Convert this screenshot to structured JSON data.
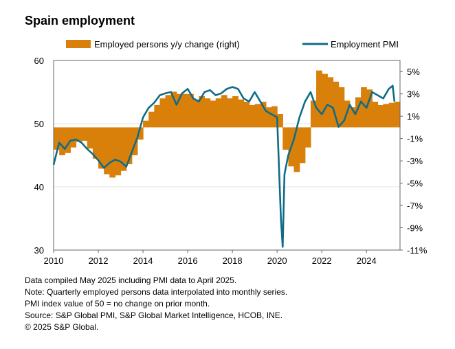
{
  "title": "Spain employment",
  "colors": {
    "bar": "#d9800a",
    "line": "#106b87",
    "grid": "#e6e6e6",
    "axis": "#666666"
  },
  "notes": [
    "Data compiled May 2025 including PMI data to April 2025.",
    "Note: Quarterly employed persons data interpolated into monthly series.",
    "PMI index value of 50 = no change on prior month.",
    "Source: S&P Global PMI, S&P Global Market Intelligence, HCOB, INE.",
    "© 2025 S&P Global."
  ],
  "chart_data": {
    "type": "line",
    "legend_position": "top",
    "grid": true,
    "x_label": "",
    "x_range": [
      2010.0,
      2025.5
    ],
    "x_ticks": [
      "2010",
      "2012",
      "2014",
      "2016",
      "2018",
      "2020",
      "2022",
      "2024"
    ],
    "y_left_range": [
      30,
      60
    ],
    "y_left_ticks": [
      "60",
      "50",
      "40",
      "30"
    ],
    "y_right_range": [
      -11,
      6
    ],
    "y_right_ticks": [
      "5%",
      "3%",
      "1%",
      "-1%",
      "-3%",
      "-5%",
      "-7%",
      "-9%",
      "-11%"
    ],
    "series": [
      {
        "name": "Employed persons y/y change (right)",
        "type": "bar",
        "axis": "right",
        "x": [
          2010.0,
          2010.25,
          2010.5,
          2010.75,
          2011.0,
          2011.25,
          2011.5,
          2011.75,
          2012.0,
          2012.25,
          2012.5,
          2012.75,
          2013.0,
          2013.25,
          2013.5,
          2013.75,
          2014.0,
          2014.25,
          2014.5,
          2014.75,
          2015.0,
          2015.25,
          2015.5,
          2015.75,
          2016.0,
          2016.25,
          2016.5,
          2016.75,
          2017.0,
          2017.25,
          2017.5,
          2017.75,
          2018.0,
          2018.25,
          2018.5,
          2018.75,
          2019.0,
          2019.25,
          2019.5,
          2019.75,
          2020.0,
          2020.25,
          2020.5,
          2020.75,
          2021.0,
          2021.25,
          2021.5,
          2021.75,
          2022.0,
          2022.25,
          2022.5,
          2022.75,
          2023.0,
          2023.25,
          2023.5,
          2023.75,
          2024.0,
          2024.25,
          2024.5,
          2024.75,
          2025.0,
          2025.25
        ],
        "values": [
          -2.0,
          -2.5,
          -2.3,
          -1.8,
          -1.3,
          -1.2,
          -1.9,
          -2.8,
          -3.7,
          -4.2,
          -4.5,
          -4.3,
          -3.9,
          -3.3,
          -2.5,
          -1.1,
          0.6,
          1.4,
          2.0,
          2.6,
          2.9,
          3.2,
          3.0,
          3.0,
          3.0,
          2.5,
          2.8,
          2.6,
          2.4,
          2.6,
          2.9,
          2.6,
          2.8,
          2.5,
          2.3,
          2.0,
          2.1,
          2.3,
          1.8,
          1.9,
          1.2,
          -2.0,
          -3.5,
          -4.0,
          -3.2,
          -1.8,
          2.4,
          5.1,
          4.8,
          4.5,
          4.1,
          3.6,
          2.4,
          1.8,
          2.7,
          3.6,
          3.4,
          2.3,
          2.0,
          2.1,
          2.2,
          2.3
        ]
      },
      {
        "name": "Employment PMI",
        "type": "line",
        "axis": "left",
        "x": [
          2010.0,
          2010.25,
          2010.5,
          2010.75,
          2011.0,
          2011.25,
          2011.5,
          2011.75,
          2012.0,
          2012.25,
          2012.5,
          2012.75,
          2013.0,
          2013.25,
          2013.5,
          2013.75,
          2014.0,
          2014.25,
          2014.5,
          2014.75,
          2015.0,
          2015.25,
          2015.5,
          2015.75,
          2016.0,
          2016.25,
          2016.5,
          2016.75,
          2017.0,
          2017.25,
          2017.5,
          2017.75,
          2018.0,
          2018.25,
          2018.5,
          2018.75,
          2019.0,
          2019.25,
          2019.5,
          2019.75,
          2020.0,
          2020.17,
          2020.25,
          2020.33,
          2020.5,
          2020.75,
          2021.0,
          2021.25,
          2021.5,
          2021.75,
          2022.0,
          2022.25,
          2022.5,
          2022.75,
          2023.0,
          2023.25,
          2023.5,
          2023.75,
          2024.0,
          2024.25,
          2024.5,
          2024.75,
          2025.0,
          2025.17,
          2025.25
        ],
        "values": [
          43.5,
          47.0,
          46.0,
          47.3,
          47.5,
          47.0,
          46.0,
          45.2,
          44.2,
          43.0,
          43.8,
          44.3,
          44.0,
          43.2,
          45.5,
          47.8,
          51.0,
          52.5,
          53.3,
          54.5,
          54.8,
          55.0,
          53.0,
          54.8,
          55.5,
          54.0,
          53.5,
          55.0,
          55.3,
          54.5,
          54.8,
          55.5,
          55.8,
          55.5,
          54.0,
          53.5,
          55.0,
          53.5,
          52.0,
          51.5,
          51.0,
          35.0,
          30.5,
          42.0,
          45.0,
          47.5,
          51.0,
          53.5,
          55.0,
          52.5,
          51.5,
          53.0,
          52.5,
          49.5,
          50.5,
          53.0,
          51.5,
          53.5,
          52.5,
          55.0,
          54.5,
          54.0,
          55.5,
          56.0,
          53.5
        ]
      }
    ]
  }
}
